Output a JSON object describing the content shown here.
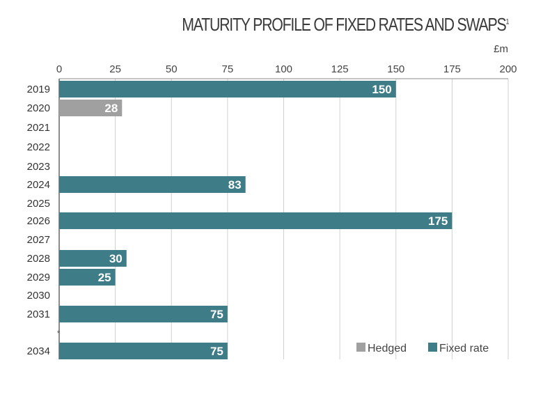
{
  "chart_data": {
    "type": "bar",
    "orientation": "horizontal",
    "title": "MATURITY PROFILE OF FIXED RATES AND SWAPS",
    "title_footnote": "1",
    "unit_label": "£m",
    "xlim": [
      0,
      200
    ],
    "x_ticks": [
      "0",
      "25",
      "50",
      "75",
      "100",
      "125",
      "150",
      "175",
      "200"
    ],
    "grid": true,
    "legend_position": "bottom-right",
    "categories": [
      "2019",
      "2020",
      "2021",
      "2022",
      "2023",
      "2024",
      "2025",
      "2026",
      "2027",
      "2028",
      "2029",
      "2030",
      "2031",
      "2034"
    ],
    "break_marker": "*",
    "series": [
      {
        "name": "Hedged",
        "color": "#a0a0a0",
        "values": [
          null,
          28,
          null,
          null,
          null,
          null,
          null,
          null,
          null,
          null,
          null,
          null,
          null,
          null
        ]
      },
      {
        "name": "Fixed rate",
        "color": "#3e7c87",
        "values": [
          150,
          null,
          null,
          null,
          null,
          83,
          null,
          175,
          null,
          30,
          25,
          null,
          75,
          75
        ]
      }
    ],
    "data_labels": [
      "150",
      "28",
      "",
      "",
      "",
      "83",
      "",
      "175",
      "",
      "30",
      "25",
      "",
      "75",
      "75"
    ]
  }
}
